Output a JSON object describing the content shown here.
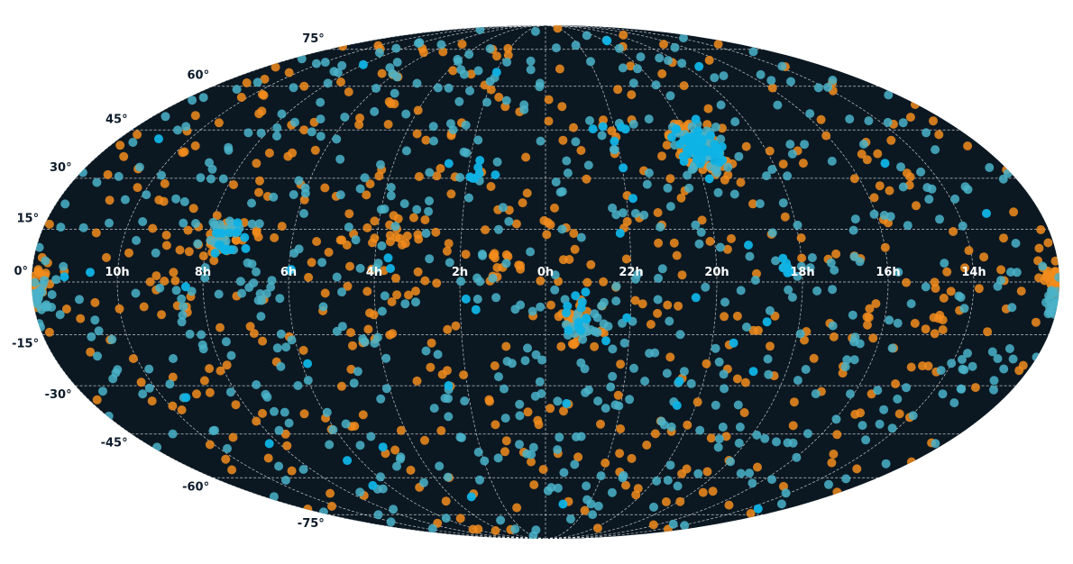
{
  "chart_data": {
    "type": "scatter",
    "projection": "mollweide",
    "title": "",
    "xlabel": "",
    "ylabel": "",
    "background_color": "#0b1822",
    "grid": true,
    "ra_tick_labels": [
      "14h",
      "16h",
      "18h",
      "20h",
      "22h",
      "0h",
      "2h",
      "4h",
      "6h",
      "8h",
      "10h"
    ],
    "ra_tick_values_hours": [
      14,
      16,
      18,
      20,
      22,
      0,
      2,
      4,
      6,
      8,
      10
    ],
    "dec_tick_labels": [
      "75°",
      "60°",
      "45°",
      "30°",
      "15°",
      "0°",
      "-15°",
      "-30°",
      "-45°",
      "-60°",
      "-75°"
    ],
    "dec_tick_values_deg": [
      75,
      60,
      45,
      30,
      15,
      0,
      -15,
      -30,
      -45,
      -60,
      -75
    ],
    "ra_center_hours": 0,
    "ra_increases_to": "left",
    "series": [
      {
        "color": "#f28c1c",
        "approx_total_points": 700,
        "clusters": [
          {
            "ra_h": 19.8,
            "dec": 39,
            "n": 60,
            "spread_ra_h": 0.35,
            "spread_dec": 4
          },
          {
            "ra_h": 11.9,
            "dec": 0,
            "n": 30,
            "spread_ra_h": 0.2,
            "spread_dec": 2
          },
          {
            "ra_h": 7.6,
            "dec": 12,
            "n": 25,
            "spread_ra_h": 0.3,
            "spread_dec": 3
          },
          {
            "ra_h": 3.6,
            "dec": 14,
            "n": 20,
            "spread_ra_h": 0.4,
            "spread_dec": 3
          },
          {
            "ra_h": 23.3,
            "dec": -10,
            "n": 22,
            "spread_ra_h": 0.25,
            "spread_dec": 3
          },
          {
            "ra_h": 1.0,
            "dec": 5,
            "n": 15,
            "spread_ra_h": 0.3,
            "spread_dec": 3
          },
          {
            "ra_h": 12.1,
            "dec": 1,
            "n": 15,
            "spread_ra_h": 0.2,
            "spread_dec": 3
          },
          {
            "ra_h": 14.7,
            "dec": -9,
            "n": 12,
            "spread_ra_h": 0.2,
            "spread_dec": 4
          }
        ],
        "background_points": 500
      },
      {
        "color": "#4ab3c9",
        "approx_total_points": 800,
        "clusters": [
          {
            "ra_h": 19.8,
            "dec": 39,
            "n": 50,
            "spread_ra_h": 0.3,
            "spread_dec": 4
          },
          {
            "ra_h": 11.9,
            "dec": -4,
            "n": 25,
            "spread_ra_h": 0.2,
            "spread_dec": 3
          },
          {
            "ra_h": 7.6,
            "dec": 14,
            "n": 20,
            "spread_ra_h": 0.3,
            "spread_dec": 3
          },
          {
            "ra_h": 23.2,
            "dec": -13,
            "n": 15,
            "spread_ra_h": 0.25,
            "spread_dec": 3
          },
          {
            "ra_h": 6.7,
            "dec": 0,
            "n": 10,
            "spread_ra_h": 0.25,
            "spread_dec": 3
          },
          {
            "ra_h": 12.1,
            "dec": -5,
            "n": 12,
            "spread_ra_h": 0.2,
            "spread_dec": 2
          }
        ],
        "background_points": 600
      },
      {
        "color": "#0fb3e6",
        "approx_total_points": 150,
        "clusters": [
          {
            "ra_h": 19.8,
            "dec": 40,
            "n": 60,
            "spread_ra_h": 0.3,
            "spread_dec": 3
          },
          {
            "ra_h": 7.6,
            "dec": 12,
            "n": 15,
            "spread_ra_h": 0.25,
            "spread_dec": 3
          },
          {
            "ra_h": 18.4,
            "dec": 4,
            "n": 6,
            "spread_ra_h": 0.1,
            "spread_dec": 1
          },
          {
            "ra_h": 23.2,
            "dec": -10,
            "n": 10,
            "spread_ra_h": 0.25,
            "spread_dec": 3
          },
          {
            "ra_h": 1.8,
            "dec": 31,
            "n": 8,
            "spread_ra_h": 0.3,
            "spread_dec": 2
          },
          {
            "ra_h": 22.2,
            "dec": 46,
            "n": 5,
            "spread_ra_h": 0.3,
            "spread_dec": 2
          }
        ],
        "background_points": 40
      }
    ]
  }
}
